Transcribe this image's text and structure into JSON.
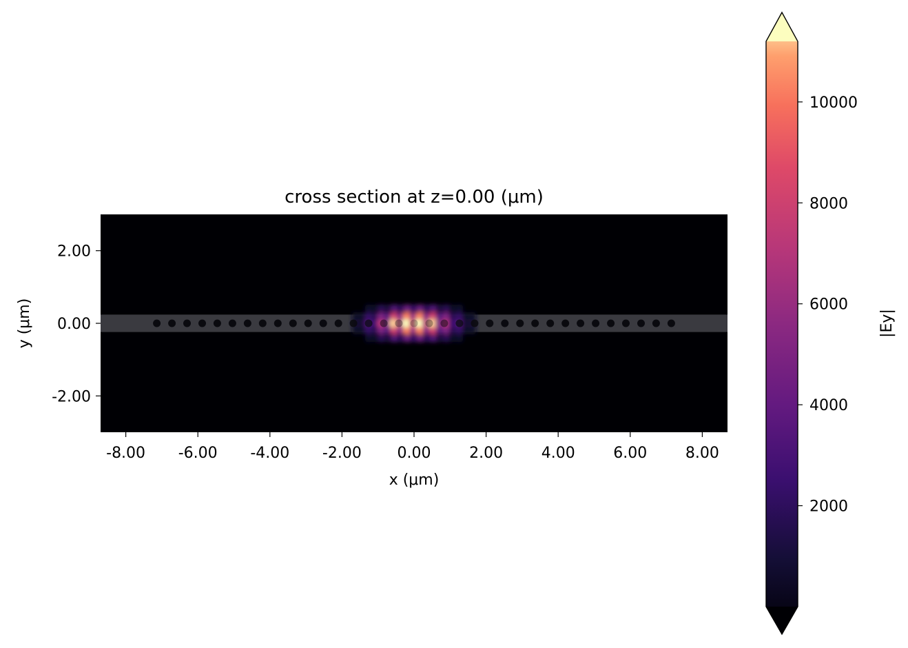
{
  "chart_data": {
    "type": "heatmap",
    "title": "cross section at z=0.00 (μm)",
    "xlabel": "x (μm)",
    "ylabel": "y (μm)",
    "xlim": [
      -8.7,
      8.7
    ],
    "ylim": [
      -3.0,
      3.0
    ],
    "x_ticks": [
      -8,
      -6,
      -4,
      -2,
      0,
      2,
      4,
      6,
      8
    ],
    "x_tick_labels": [
      "-8.00",
      "-6.00",
      "-4.00",
      "-2.00",
      "0.00",
      "2.00",
      "4.00",
      "6.00",
      "8.00"
    ],
    "y_ticks": [
      2,
      0,
      -2
    ],
    "y_tick_labels": [
      "2.00",
      "0.00",
      "-2.00"
    ],
    "colormap": "magma",
    "colorbar": {
      "label": "|Ey|",
      "vmin": 0,
      "vmax": 11200,
      "extend": "both",
      "ticks": [
        2000,
        4000,
        6000,
        8000,
        10000
      ],
      "tick_labels": [
        "2000",
        "4000",
        "6000",
        "8000",
        "10000"
      ]
    },
    "waveguide": {
      "y_center": 0.0,
      "width": 0.48,
      "color": "#3a3a40"
    },
    "holes": {
      "y": 0.0,
      "count": 35,
      "x_start": -7.14,
      "x_end": 7.14,
      "radius": 0.1,
      "color": "#0a0a0f"
    },
    "field": {
      "peak": 11200,
      "x_period": 0.36,
      "x_envelope_sigma": 0.75,
      "y_lobe_period": 0.21,
      "y_extent": 0.6
    }
  }
}
